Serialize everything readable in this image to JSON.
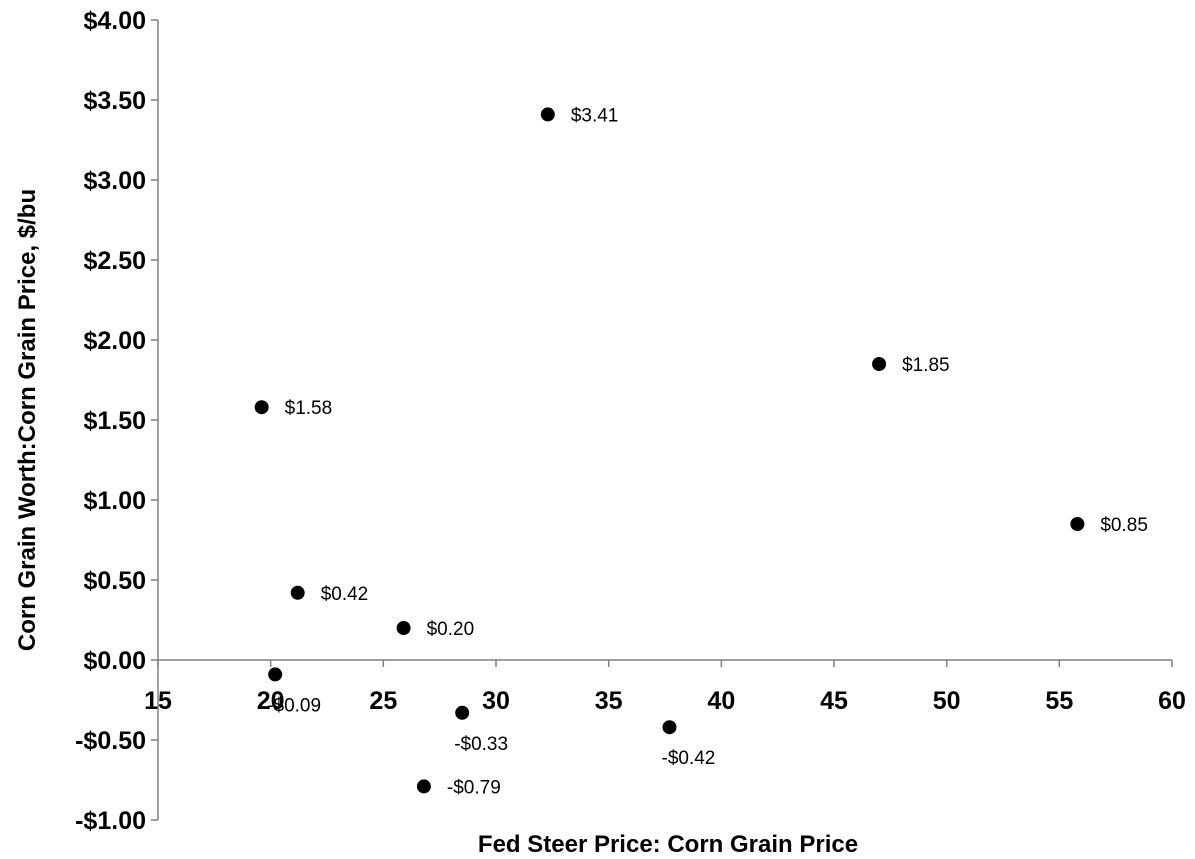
{
  "chart_data": {
    "type": "scatter",
    "title": "",
    "xlabel": "Fed Steer Price: Corn Grain Price",
    "ylabel": "Corn Grain Worth:Corn Grain Price, $/bu",
    "xlim": [
      15,
      60
    ],
    "ylim": [
      -1.0,
      4.0
    ],
    "x_ticks": [
      {
        "value": 15,
        "label": "15"
      },
      {
        "value": 20,
        "label": "20"
      },
      {
        "value": 25,
        "label": "25"
      },
      {
        "value": 30,
        "label": "30"
      },
      {
        "value": 35,
        "label": "35"
      },
      {
        "value": 40,
        "label": "40"
      },
      {
        "value": 45,
        "label": "45"
      },
      {
        "value": 50,
        "label": "50"
      },
      {
        "value": 55,
        "label": "55"
      },
      {
        "value": 60,
        "label": "60"
      }
    ],
    "y_ticks": [
      {
        "value": 4.0,
        "label": "$4.00"
      },
      {
        "value": 3.5,
        "label": "$3.50"
      },
      {
        "value": 3.0,
        "label": "$3.00"
      },
      {
        "value": 2.5,
        "label": "$2.50"
      },
      {
        "value": 2.0,
        "label": "$2.00"
      },
      {
        "value": 1.5,
        "label": "$1.50"
      },
      {
        "value": 1.0,
        "label": "$1.00"
      },
      {
        "value": 0.5,
        "label": "$0.50"
      },
      {
        "value": 0.0,
        "label": "$0.00"
      },
      {
        "value": -0.5,
        "label": "-$0.50"
      },
      {
        "value": -1.0,
        "label": "-$1.00"
      }
    ],
    "grid": false,
    "legend": "none",
    "marker_color": "#000000",
    "axis_color": "#808080",
    "points": [
      {
        "x": 19.6,
        "y": 1.58,
        "label": "$1.58",
        "label_pos": "right"
      },
      {
        "x": 20.2,
        "y": -0.09,
        "label": "-$0.09",
        "label_pos": "below"
      },
      {
        "x": 21.2,
        "y": 0.42,
        "label": "$0.42",
        "label_pos": "right"
      },
      {
        "x": 25.9,
        "y": 0.2,
        "label": "$0.20",
        "label_pos": "right"
      },
      {
        "x": 26.8,
        "y": -0.79,
        "label": "-$0.79",
        "label_pos": "right"
      },
      {
        "x": 28.5,
        "y": -0.33,
        "label": "-$0.33",
        "label_pos": "below"
      },
      {
        "x": 32.3,
        "y": 3.41,
        "label": "$3.41",
        "label_pos": "right"
      },
      {
        "x": 37.7,
        "y": -0.42,
        "label": "-$0.42",
        "label_pos": "below"
      },
      {
        "x": 47.0,
        "y": 1.85,
        "label": "$1.85",
        "label_pos": "right"
      },
      {
        "x": 55.8,
        "y": 0.85,
        "label": "$0.85",
        "label_pos": "right"
      }
    ]
  }
}
